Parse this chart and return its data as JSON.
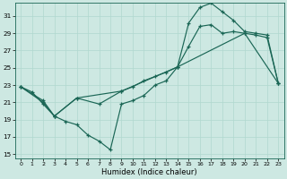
{
  "xlabel": "Humidex (Indice chaleur)",
  "bg_color": "#cde8e2",
  "grid_color": "#b0d8ce",
  "line_color": "#1a6655",
  "xlim": [
    -0.5,
    23.5
  ],
  "ylim": [
    14.5,
    32.5
  ],
  "yticks": [
    15,
    17,
    19,
    21,
    23,
    25,
    27,
    29,
    31
  ],
  "xticks": [
    0,
    1,
    2,
    3,
    4,
    5,
    6,
    7,
    8,
    9,
    10,
    11,
    12,
    13,
    14,
    15,
    16,
    17,
    18,
    19,
    20,
    21,
    22,
    23
  ],
  "series1_x": [
    0,
    1,
    2,
    3,
    4,
    5,
    6,
    7,
    8,
    9,
    10,
    11,
    12,
    13,
    14,
    15,
    16,
    17,
    18,
    19,
    20,
    21,
    22,
    23
  ],
  "series1_y": [
    22.8,
    22.2,
    20.8,
    19.4,
    18.8,
    18.4,
    17.2,
    16.5,
    15.5,
    20.8,
    21.2,
    21.8,
    23.0,
    23.5,
    25.1,
    30.2,
    32.0,
    32.5,
    31.5,
    30.5,
    29.2,
    29.0,
    28.8,
    23.2
  ],
  "series2_x": [
    0,
    2,
    3,
    5,
    7,
    9,
    10,
    11,
    12,
    13,
    14,
    15,
    16,
    17,
    18,
    19,
    20,
    21,
    22,
    23
  ],
  "series2_y": [
    22.8,
    21.0,
    19.4,
    21.5,
    20.8,
    22.3,
    22.8,
    23.5,
    24.0,
    24.5,
    25.1,
    27.5,
    29.8,
    30.0,
    29.0,
    29.2,
    29.0,
    28.8,
    28.5,
    23.2
  ],
  "series3_x": [
    0,
    2,
    3,
    5,
    9,
    14,
    20,
    23
  ],
  "series3_y": [
    22.8,
    21.2,
    19.4,
    21.5,
    22.3,
    25.1,
    29.0,
    23.2
  ]
}
